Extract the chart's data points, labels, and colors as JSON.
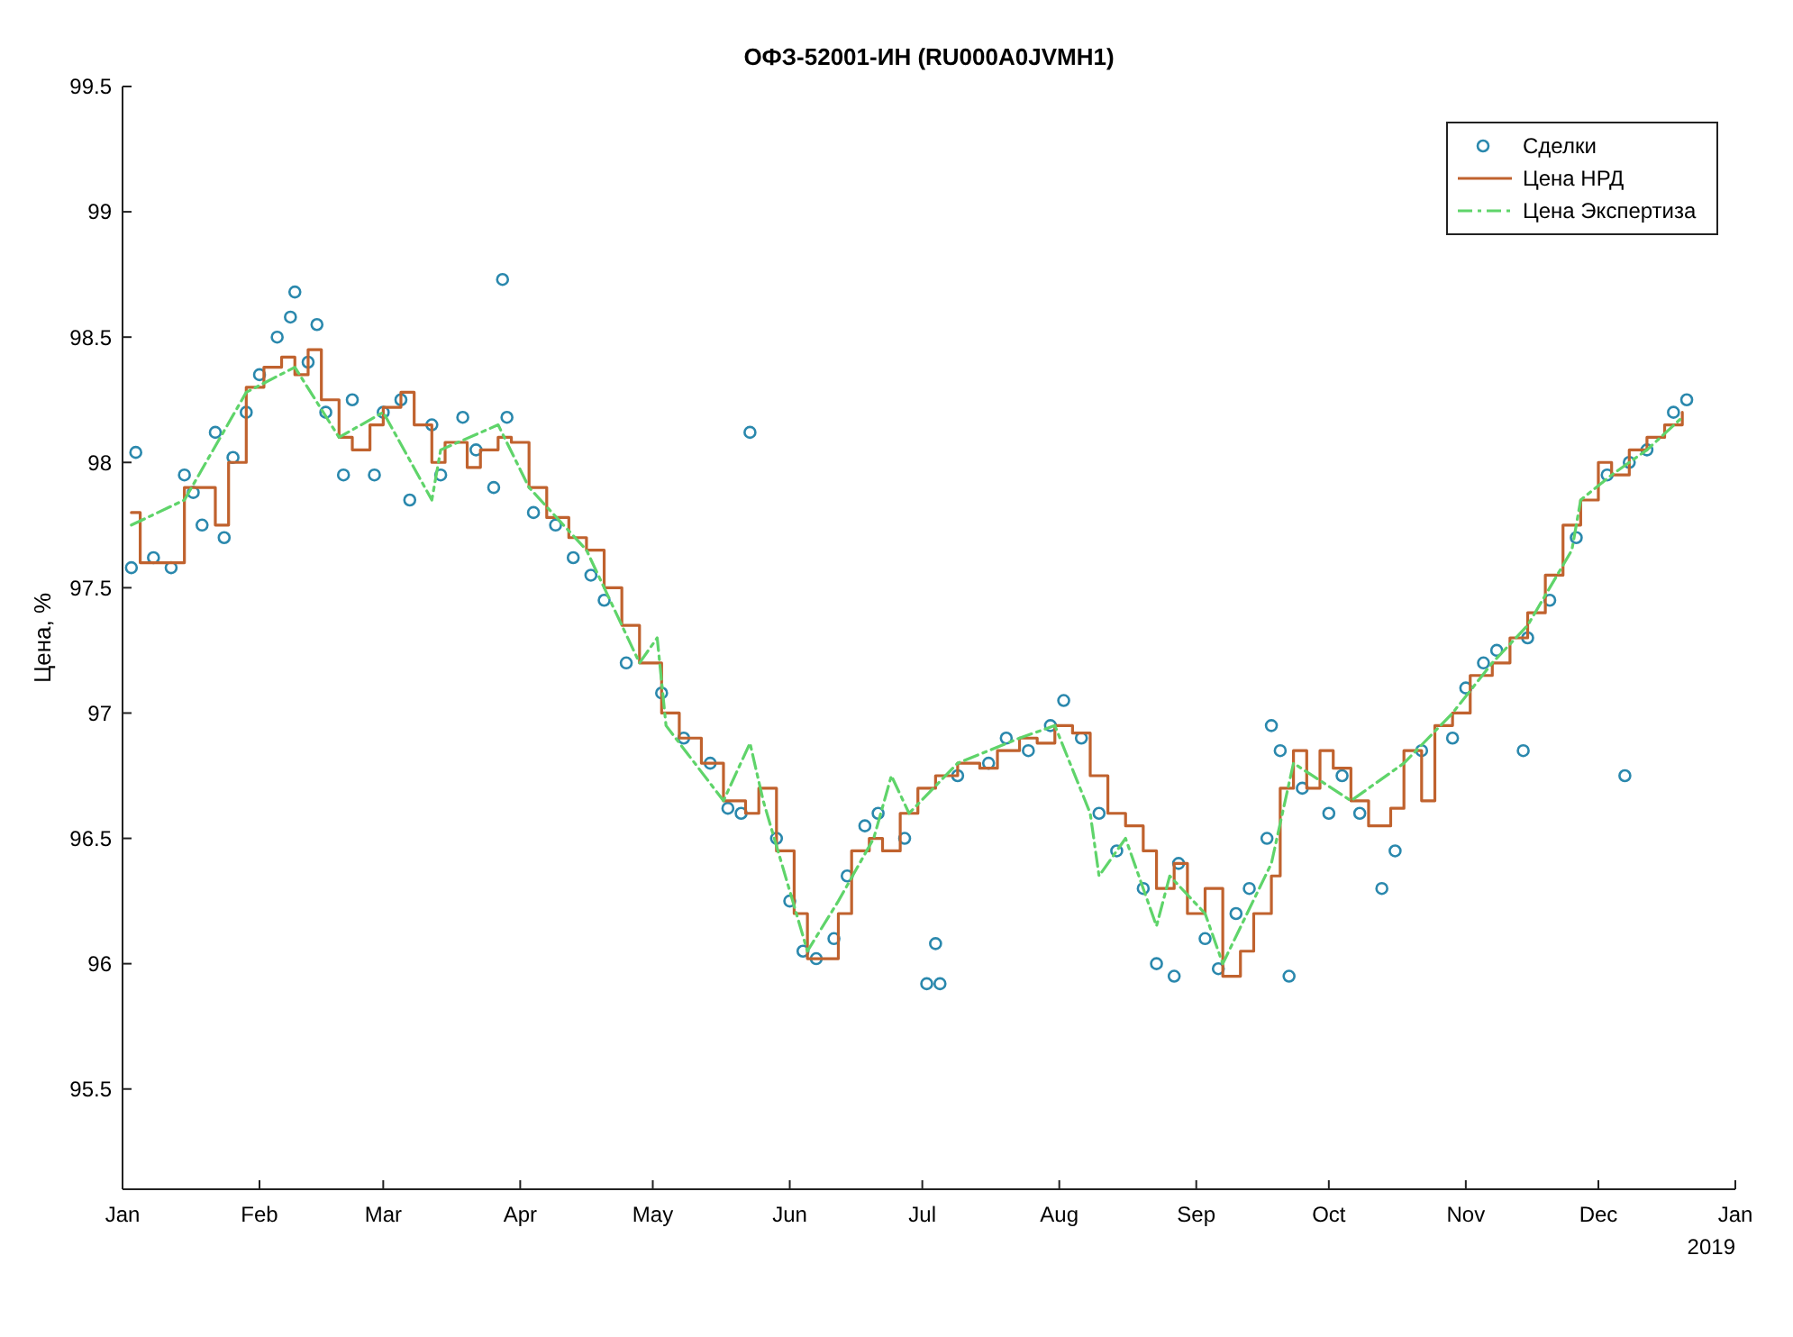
{
  "chart_data": {
    "type": "line",
    "title": "ОФЗ-52001-ИН (RU000A0JVMH1)",
    "ylabel": "Цена, %",
    "annotations": [
      "2019"
    ],
    "xlim": [
      "2018-01-01",
      "2019-01-01"
    ],
    "xticks": [
      {
        "value": "2018-01-01",
        "label": "Jan"
      },
      {
        "value": "2018-02-01",
        "label": "Feb"
      },
      {
        "value": "2018-03-01",
        "label": "Mar"
      },
      {
        "value": "2018-04-01",
        "label": "Apr"
      },
      {
        "value": "2018-05-01",
        "label": "May"
      },
      {
        "value": "2018-06-01",
        "label": "Jun"
      },
      {
        "value": "2018-07-01",
        "label": "Jul"
      },
      {
        "value": "2018-08-01",
        "label": "Aug"
      },
      {
        "value": "2018-09-01",
        "label": "Sep"
      },
      {
        "value": "2018-10-01",
        "label": "Oct"
      },
      {
        "value": "2018-11-01",
        "label": "Nov"
      },
      {
        "value": "2018-12-01",
        "label": "Dec"
      },
      {
        "value": "2019-01-01",
        "label": "Jan"
      }
    ],
    "ylim": [
      95.1,
      99.5
    ],
    "yticks": [
      95.5,
      96,
      96.5,
      97,
      97.5,
      98,
      98.5,
      99,
      99.5
    ],
    "grid": false,
    "legend": "top right",
    "series": [
      {
        "type": "scatter",
        "name": "Сделки",
        "color": "#2a88ad",
        "marker": "circle",
        "x": [
          "2018-01-03",
          "2018-01-04",
          "2018-01-08",
          "2018-01-12",
          "2018-01-15",
          "2018-01-17",
          "2018-01-19",
          "2018-01-22",
          "2018-01-24",
          "2018-01-26",
          "2018-01-29",
          "2018-02-01",
          "2018-02-05",
          "2018-02-08",
          "2018-02-09",
          "2018-02-12",
          "2018-02-14",
          "2018-02-16",
          "2018-02-20",
          "2018-02-22",
          "2018-02-27",
          "2018-03-01",
          "2018-03-05",
          "2018-03-07",
          "2018-03-12",
          "2018-03-14",
          "2018-03-19",
          "2018-03-22",
          "2018-03-26",
          "2018-03-28",
          "2018-03-29",
          "2018-04-04",
          "2018-04-09",
          "2018-04-13",
          "2018-04-17",
          "2018-04-20",
          "2018-04-25",
          "2018-05-03",
          "2018-05-08",
          "2018-05-14",
          "2018-05-18",
          "2018-05-21",
          "2018-05-23",
          "2018-05-29",
          "2018-06-01",
          "2018-06-04",
          "2018-06-07",
          "2018-06-11",
          "2018-06-14",
          "2018-06-18",
          "2018-06-21",
          "2018-06-27",
          "2018-07-02",
          "2018-07-04",
          "2018-07-05",
          "2018-07-09",
          "2018-07-16",
          "2018-07-20",
          "2018-07-25",
          "2018-07-30",
          "2018-08-02",
          "2018-08-06",
          "2018-08-10",
          "2018-08-14",
          "2018-08-20",
          "2018-08-23",
          "2018-08-27",
          "2018-08-28",
          "2018-09-03",
          "2018-09-06",
          "2018-09-10",
          "2018-09-13",
          "2018-09-17",
          "2018-09-18",
          "2018-09-20",
          "2018-09-22",
          "2018-09-25",
          "2018-10-01",
          "2018-10-04",
          "2018-10-08",
          "2018-10-13",
          "2018-10-16",
          "2018-10-22",
          "2018-10-29",
          "2018-11-01",
          "2018-11-05",
          "2018-11-08",
          "2018-11-14",
          "2018-11-15",
          "2018-11-20",
          "2018-11-26",
          "2018-12-03",
          "2018-12-07",
          "2018-12-08",
          "2018-12-12",
          "2018-12-18",
          "2018-12-21"
        ],
        "values": [
          97.58,
          98.04,
          97.62,
          97.58,
          97.95,
          97.88,
          97.75,
          98.12,
          97.7,
          98.02,
          98.2,
          98.35,
          98.5,
          98.58,
          98.68,
          98.4,
          98.55,
          98.2,
          97.95,
          98.25,
          97.95,
          98.2,
          98.25,
          97.85,
          98.15,
          97.95,
          98.18,
          98.05,
          97.9,
          98.73,
          98.18,
          97.8,
          97.75,
          97.62,
          97.55,
          97.45,
          97.2,
          97.08,
          96.9,
          96.8,
          96.62,
          96.6,
          98.12,
          96.5,
          96.25,
          96.05,
          96.02,
          96.1,
          96.35,
          96.55,
          96.6,
          96.5,
          95.92,
          96.08,
          95.92,
          96.75,
          96.8,
          96.9,
          96.85,
          96.95,
          97.05,
          96.9,
          96.6,
          96.45,
          96.3,
          96.0,
          95.95,
          96.4,
          96.1,
          95.98,
          96.2,
          96.3,
          96.5,
          96.95,
          96.85,
          95.95,
          96.7,
          96.6,
          96.75,
          96.6,
          96.3,
          96.45,
          96.85,
          96.9,
          97.1,
          97.2,
          97.25,
          96.85,
          97.3,
          97.45,
          97.7,
          97.95,
          96.75,
          98.0,
          98.05,
          98.2,
          98.25
        ]
      },
      {
        "type": "step",
        "name": "Цена НРД",
        "color": "#c0622e",
        "x": [
          "2018-01-03",
          "2018-01-05",
          "2018-01-12",
          "2018-01-15",
          "2018-01-22",
          "2018-01-25",
          "2018-01-29",
          "2018-02-02",
          "2018-02-06",
          "2018-02-09",
          "2018-02-12",
          "2018-02-15",
          "2018-02-19",
          "2018-02-22",
          "2018-02-26",
          "2018-03-01",
          "2018-03-05",
          "2018-03-08",
          "2018-03-12",
          "2018-03-15",
          "2018-03-20",
          "2018-03-23",
          "2018-03-27",
          "2018-03-30",
          "2018-04-03",
          "2018-04-07",
          "2018-04-12",
          "2018-04-16",
          "2018-04-20",
          "2018-04-24",
          "2018-04-28",
          "2018-05-03",
          "2018-05-07",
          "2018-05-12",
          "2018-05-17",
          "2018-05-22",
          "2018-05-25",
          "2018-05-29",
          "2018-06-02",
          "2018-06-05",
          "2018-06-09",
          "2018-06-12",
          "2018-06-15",
          "2018-06-19",
          "2018-06-22",
          "2018-06-26",
          "2018-06-30",
          "2018-07-04",
          "2018-07-09",
          "2018-07-14",
          "2018-07-18",
          "2018-07-23",
          "2018-07-27",
          "2018-07-31",
          "2018-08-04",
          "2018-08-08",
          "2018-08-12",
          "2018-08-16",
          "2018-08-20",
          "2018-08-23",
          "2018-08-27",
          "2018-08-30",
          "2018-09-03",
          "2018-09-07",
          "2018-09-11",
          "2018-09-14",
          "2018-09-18",
          "2018-09-20",
          "2018-09-23",
          "2018-09-26",
          "2018-09-29",
          "2018-10-02",
          "2018-10-06",
          "2018-10-10",
          "2018-10-15",
          "2018-10-18",
          "2018-10-22",
          "2018-10-25",
          "2018-10-29",
          "2018-11-02",
          "2018-11-07",
          "2018-11-11",
          "2018-11-15",
          "2018-11-19",
          "2018-11-23",
          "2018-11-27",
          "2018-12-01",
          "2018-12-04",
          "2018-12-08",
          "2018-12-12",
          "2018-12-16",
          "2018-12-20"
        ],
        "values": [
          97.8,
          97.6,
          97.6,
          97.9,
          97.75,
          98.0,
          98.3,
          98.38,
          98.42,
          98.35,
          98.45,
          98.25,
          98.1,
          98.05,
          98.15,
          98.22,
          98.28,
          98.15,
          98.0,
          98.08,
          97.98,
          98.05,
          98.1,
          98.08,
          97.9,
          97.78,
          97.7,
          97.65,
          97.5,
          97.35,
          97.2,
          97.0,
          96.9,
          96.8,
          96.65,
          96.6,
          96.7,
          96.45,
          96.2,
          96.02,
          96.02,
          96.2,
          96.45,
          96.5,
          96.45,
          96.6,
          96.7,
          96.75,
          96.8,
          96.78,
          96.85,
          96.9,
          96.88,
          96.95,
          96.92,
          96.75,
          96.6,
          96.55,
          96.45,
          96.3,
          96.4,
          96.2,
          96.3,
          95.95,
          96.05,
          96.2,
          96.35,
          96.7,
          96.85,
          96.7,
          96.85,
          96.78,
          96.65,
          96.55,
          96.62,
          96.85,
          96.65,
          96.95,
          97.0,
          97.15,
          97.2,
          97.3,
          97.4,
          97.55,
          97.75,
          97.85,
          98.0,
          97.95,
          98.05,
          98.1,
          98.15,
          98.2
        ]
      },
      {
        "name": "Цена Экспертиза",
        "color": "#5fd46a",
        "line_style": "dashed",
        "x": [
          "2018-01-03",
          "2018-01-15",
          "2018-01-29",
          "2018-02-09",
          "2018-02-19",
          "2018-03-01",
          "2018-03-12",
          "2018-03-14",
          "2018-03-27",
          "2018-04-03",
          "2018-04-16",
          "2018-04-28",
          "2018-05-02",
          "2018-05-04",
          "2018-05-17",
          "2018-05-23",
          "2018-05-26",
          "2018-06-05",
          "2018-06-12",
          "2018-06-20",
          "2018-06-24",
          "2018-06-28",
          "2018-07-09",
          "2018-07-23",
          "2018-07-31",
          "2018-08-08",
          "2018-08-10",
          "2018-08-16",
          "2018-08-23",
          "2018-08-26",
          "2018-09-03",
          "2018-09-07",
          "2018-09-18",
          "2018-09-23",
          "2018-10-06",
          "2018-10-18",
          "2018-10-29",
          "2018-11-07",
          "2018-11-15",
          "2018-11-25",
          "2018-11-27",
          "2018-12-04",
          "2018-12-12",
          "2018-12-20"
        ],
        "values": [
          97.75,
          97.85,
          98.28,
          98.38,
          98.1,
          98.2,
          97.85,
          98.05,
          98.15,
          97.9,
          97.65,
          97.2,
          97.3,
          96.95,
          96.65,
          96.88,
          96.65,
          96.05,
          96.25,
          96.5,
          96.75,
          96.6,
          96.8,
          96.9,
          96.95,
          96.6,
          96.35,
          96.5,
          96.15,
          96.35,
          96.2,
          96.0,
          96.4,
          96.8,
          96.65,
          96.8,
          97.0,
          97.2,
          97.35,
          97.65,
          97.85,
          97.95,
          98.05,
          98.18
        ]
      }
    ]
  }
}
